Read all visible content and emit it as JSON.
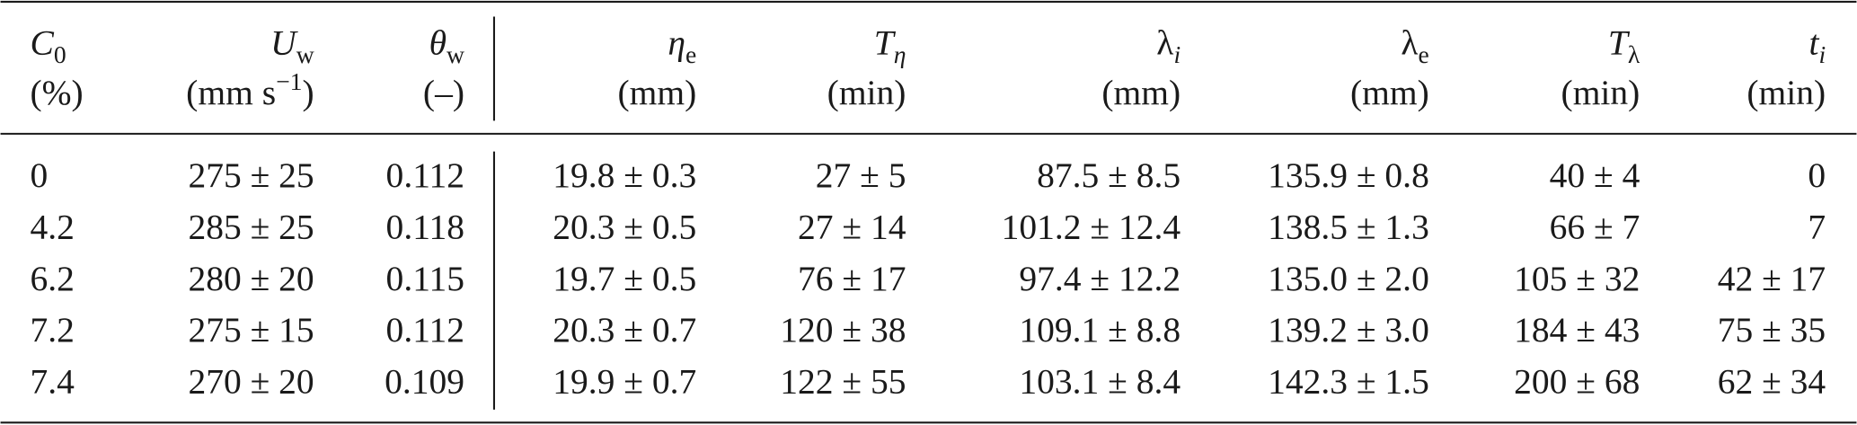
{
  "table": {
    "columns": [
      {
        "symbol": "C",
        "sub": "0",
        "unit": "(%)"
      },
      {
        "symbol": "U",
        "sub": "w",
        "unit": {
          "before": "(mm s",
          "sup": "−1",
          "after": ")"
        }
      },
      {
        "symbol": "θ",
        "sub": "w",
        "unit": "(–)"
      },
      {
        "symbol": "η",
        "sub": "e",
        "unit": "(mm)"
      },
      {
        "symbol": "T",
        "sub": "η",
        "unit": "(min)"
      },
      {
        "symbol": "λ",
        "sub": "i",
        "unit": "(mm)"
      },
      {
        "symbol": "λ",
        "sub": "e",
        "unit": "(mm)"
      },
      {
        "symbol": "T",
        "sub": "λ",
        "unit": "(min)"
      },
      {
        "symbol": "t",
        "sub": "i",
        "unit": "(min)"
      }
    ],
    "rows": [
      [
        "0",
        "275 ± 25",
        "0.112",
        "19.8 ± 0.3",
        "27 ± 5",
        "87.5 ± 8.5",
        "135.9 ± 0.8",
        "40 ± 4",
        "0"
      ],
      [
        "4.2",
        "285 ± 25",
        "0.118",
        "20.3 ± 0.5",
        "27 ± 14",
        "101.2 ± 12.4",
        "138.5 ± 1.3",
        "66 ± 7",
        "7"
      ],
      [
        "6.2",
        "280 ± 20",
        "0.115",
        "19.7 ± 0.5",
        "76 ± 17",
        "97.4 ± 12.2",
        "135.0 ± 2.0",
        "105 ± 32",
        "42 ± 17"
      ],
      [
        "7.2",
        "275 ± 15",
        "0.112",
        "20.3 ± 0.7",
        "120 ± 38",
        "109.1 ± 8.8",
        "139.2 ± 3.0",
        "184 ± 43",
        "75 ± 35"
      ],
      [
        "7.4",
        "270 ± 20",
        "0.109",
        "19.9 ± 0.7",
        "122 ± 55",
        "103.1 ± 8.4",
        "142.3 ± 1.5",
        "200 ± 68",
        "62 ± 34"
      ]
    ]
  }
}
